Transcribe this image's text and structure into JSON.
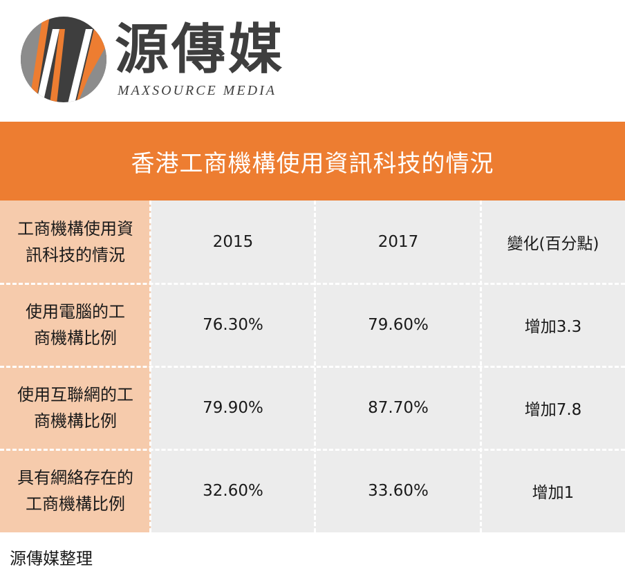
{
  "brand": {
    "name": "源傳媒",
    "subtitle": "MAXSOURCE MEDIA",
    "colors": {
      "dark": "#3e3e3e",
      "orange": "#ed7d31",
      "grey": "#8c8c8c"
    }
  },
  "banner": {
    "title": "香港工商機構使用資訊科技的情況",
    "color": "#ed7d31"
  },
  "table": {
    "columns": {
      "label": "工商機構使用資\n訊科技的情況",
      "year1": "2015",
      "year2": "2017",
      "change": "變化(百分點)"
    },
    "rows": [
      {
        "label": "使用電腦的工\n商機構比例",
        "year1": "76.30%",
        "year2": "79.60%",
        "change": "增加3.3"
      },
      {
        "label": "使用互聯網的工\n商機構比例",
        "year1": "79.90%",
        "year2": "87.70%",
        "change": "增加7.8"
      },
      {
        "label": "具有網絡存在的\n工商機構比例",
        "year1": "32.60%",
        "year2": "33.60%",
        "change": "增加1"
      }
    ]
  },
  "footer": {
    "note": "源傳媒整理"
  }
}
